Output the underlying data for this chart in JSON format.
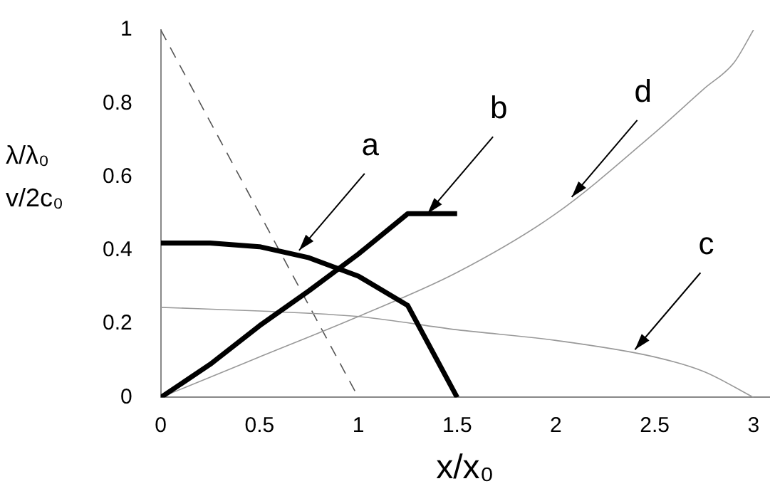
{
  "chart_data": {
    "type": "line",
    "xlabel": "x/x₀",
    "ylabel": "λ/λ₀\nv/2c₀",
    "xlim": [
      0,
      3.08
    ],
    "ylim": [
      0,
      1
    ],
    "xticks": [
      0,
      0.5,
      1,
      1.5,
      2,
      2.5,
      3
    ],
    "yticks": [
      0,
      0.2,
      0.4,
      0.6,
      0.8,
      1
    ],
    "grid": false,
    "legend": false,
    "marker": "none",
    "series": [
      {
        "color": "#000000",
        "line_style": "solid",
        "x": [
          0,
          0.25,
          0.5,
          0.75,
          1,
          1.25,
          1.5
        ],
        "values": [
          0.42,
          0.42,
          0.41,
          0.38,
          0.33,
          0.25,
          0
        ]
      },
      {
        "color": "#000000",
        "line_style": "solid",
        "x": [
          0,
          0.25,
          0.5,
          0.75,
          1,
          1.25,
          1.5
        ],
        "values": [
          0,
          0.09,
          0.195,
          0.29,
          0.39,
          0.5,
          0.5
        ]
      },
      {
        "color": "#999999",
        "line_style": "solid",
        "x": [
          0,
          0.5,
          1,
          1.5,
          2,
          2.5,
          2.75,
          3
        ],
        "values": [
          0.245,
          0.235,
          0.22,
          0.184,
          0.155,
          0.11,
          0.07,
          0
        ]
      },
      {
        "color": "#999999",
        "line_style": "solid",
        "x": [
          0,
          0.5,
          1,
          1.5,
          2,
          2.5,
          2.75,
          2.9,
          3
        ],
        "values": [
          0,
          0.11,
          0.22,
          0.34,
          0.5,
          0.72,
          0.84,
          0.91,
          1
        ]
      },
      {
        "color": "#555555",
        "line_style": "dashed",
        "x": [
          0,
          1
        ],
        "values": [
          1,
          0
        ]
      }
    ],
    "annotations": [
      {
        "text": "a",
        "x": 0.7,
        "y": 0.4
      },
      {
        "text": "b",
        "x": 1.35,
        "y": 0.5
      },
      {
        "text": "d",
        "x": 2.08,
        "y": 0.545
      },
      {
        "text": "c",
        "x": 2.4,
        "y": 0.13
      }
    ]
  }
}
